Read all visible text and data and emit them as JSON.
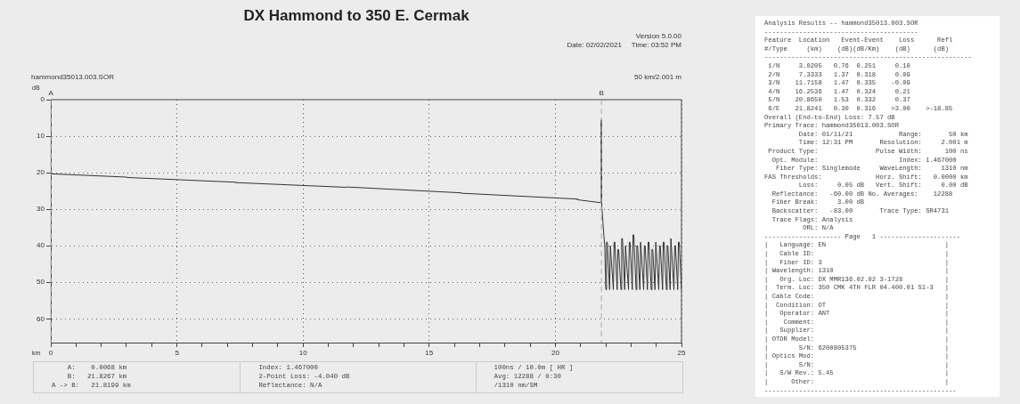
{
  "chart_data": [
    {
      "type": "line",
      "title": "DX Hammond to 350 E. Cermak",
      "subtitle": "hammond35013.003.SOR",
      "xlabel": "km",
      "ylabel": "dB",
      "xlim": [
        0,
        25
      ],
      "ylim": [
        66.5,
        0
      ],
      "xticks": [
        0,
        {
          "value": 1,
          "label": null
        },
        {
          "value": 2,
          "label": null
        },
        {
          "value": 3,
          "label": null
        },
        {
          "value": 4,
          "label": null
        },
        5,
        {
          "value": 6,
          "label": null
        },
        {
          "value": 7,
          "label": null
        },
        {
          "value": 8,
          "label": null
        },
        {
          "value": 9,
          "label": null
        },
        10,
        {
          "value": 11,
          "label": null
        },
        {
          "value": 12,
          "label": null
        },
        {
          "value": 13,
          "label": null
        },
        {
          "value": 14,
          "label": null
        },
        15,
        {
          "value": 16,
          "label": null
        },
        {
          "value": 17,
          "label": null
        },
        {
          "value": 18,
          "label": null
        },
        {
          "value": 19,
          "label": null
        },
        20,
        {
          "value": 21,
          "label": null
        },
        {
          "value": 22,
          "label": null
        },
        {
          "value": 23,
          "label": null
        },
        {
          "value": 24,
          "label": null
        },
        25
      ],
      "yticks": [
        0,
        10,
        20,
        30,
        40,
        50,
        60
      ],
      "grid": true,
      "legend": false,
      "marker": "none",
      "line_style": "solid",
      "ref_lines": [
        {
          "axis": "x",
          "value": 0.0068,
          "label": "A",
          "color": "#aaaaaa",
          "line_style": "dashed"
        },
        {
          "axis": "x",
          "value": 21.8267,
          "label": "B",
          "color": "#aaaaaa",
          "line_style": "dashed"
        }
      ],
      "annotations": [
        "    A:    0.0068 km\n    B:   21.8267 km\nA -> B:   21.8199 km",
        "Index: 1.467000\n2-Point Loss: -4.040 dB\nReflectance: N/A",
        "100ns / 10.0m [ HR ]\nAvg: 12288 / 0:30\n/1310 nm/SM",
        "Version 5.0.00\nDate: 02/02/2021     Time: 03:52 PM",
        "50 km/2.001 m"
      ],
      "series": [
        {
          "color": "#333333",
          "x": [
            0,
            3.02,
            3.03,
            7.33,
            7.34,
            11.72,
            11.73,
            16.25,
            16.26,
            20.87,
            20.88,
            21.8,
            21.82,
            21.84,
            21.88,
            21.92,
            21.96,
            22.0,
            22.03,
            22.06,
            22.15,
            22.18,
            22.21,
            22.3,
            22.33,
            22.36,
            22.45,
            22.48,
            22.51,
            22.6,
            22.63,
            22.66,
            22.75,
            22.78,
            22.81,
            22.9,
            22.93,
            22.96,
            23.05,
            23.08,
            23.11,
            23.2,
            23.23,
            23.26,
            23.35,
            23.38,
            23.41,
            23.5,
            23.53,
            23.56,
            23.65,
            23.68,
            23.71,
            23.8,
            23.83,
            23.86,
            23.95,
            23.98,
            24.01,
            24.1,
            24.13,
            24.16,
            24.25,
            24.28,
            24.31,
            24.4,
            24.43,
            24.46,
            24.55,
            24.58,
            24.61,
            24.7,
            24.73,
            24.76,
            24.85,
            24.88,
            24.91,
            25.0
          ],
          "values": [
            20.3,
            21.2,
            21.3,
            22.6,
            22.7,
            24.0,
            23.9,
            25.5,
            25.6,
            27.2,
            27.4,
            28.2,
            5.5,
            29,
            33,
            37,
            40,
            52,
            39,
            39,
            52,
            40,
            40,
            52,
            39,
            39,
            52,
            41,
            41,
            52,
            38,
            38,
            52,
            40,
            40,
            52,
            39,
            39,
            52,
            37,
            37,
            52,
            40,
            40,
            52,
            39,
            39,
            52,
            40,
            40,
            52,
            39,
            39,
            52,
            41,
            41,
            52,
            39,
            39,
            52,
            40,
            40,
            52,
            39,
            39,
            52,
            40,
            40,
            52,
            38,
            38,
            52,
            40,
            40,
            52,
            39,
            39,
            52
          ]
        }
      ]
    },
    {
      "type": "other",
      "annotations": [
        "Analysis Results -- hammond35013.003.SOR",
        "----------------------------------------",
        "Feature  Location   Event-Event    Loss      Refl",
        "#/Type     (km)    (dB)(dB/Km)    (dB)      (dB)",
        "------------------------------------------------------",
        " 1/N     3.0205   0.76  0.251     0.10",
        " 2/N     7.3333   1.37  0.318     0.09",
        " 3/N    11.7158   1.47  0.335    -0.09",
        " 4/N    16.2536   1.47  0.324     0.21",
        " 5/N    20.8650   1.53  0.332     0.37",
        " 6/E    21.8241   0.30  0.316    >3.00    >-18.85",
        "Overall (End-to-End) Loss: 7.57 dB",
        "Primary Trace: hammond35013.003.SOR",
        "         Date: 01/11/21            Range:       50 km",
        "         Time: 12:31 PM       Resolution:     2.001 m",
        " Product Type:               Pulse Width:      100 ns",
        "  Opt. Module:                     Index: 1.467000",
        "   Fiber Type: Singlemode     WaveLength:     1310 nm",
        "FAS Thresholds:              Horz. Shift:   0.0000 km",
        "         Loss:     0.05 dB   Vert. Shift:     0.00 dB",
        "  Reflectance:   -60.00 dB No. Averages:    12288",
        "  Fiber Break:     3.00 dB",
        "  Backscatter:   -83.00       Trace Type: SR4731",
        "  Trace Flags: Analysis",
        "          ORL: N/A",
        "-------------------- Page   1 ---------------------",
        "|   Language: EN                               |",
        "|   Cable ID:                                  |",
        "|   Fiber ID: 3                                |",
        "| Wavelength: 1310                             |",
        "|   Org. Loc: DX MMR136.02.02 3-1728           |",
        "|  Term. Loc: 350 CMK 4TH FLR 04.400.01 S1-3   |",
        "| Cable Code:                                  |",
        "|  Condition: OT                               |",
        "|   Operator: ANT                              |",
        "|    Comment:                                  |",
        "|   Supplier:                                  |",
        "| OTDR Model:                                  |",
        "|        S/N: 6200805375                       |",
        "| Optics Mod:                                  |",
        "|        S/N:                                  |",
        "|   S/W Rev.: 5.45                             |",
        "|      Other:                                  |",
        "--------------------------------------------------"
      ]
    }
  ]
}
